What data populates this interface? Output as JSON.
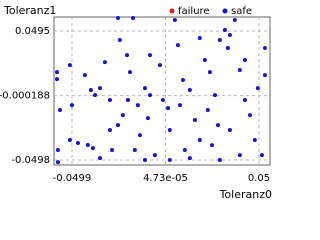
{
  "chart_data": {
    "type": "scatter",
    "y_label": "Toleranz1",
    "x_label": "Toleranz0",
    "xlim": [
      -0.0595,
      0.0559
    ],
    "ylim": [
      -0.0536,
      0.0603
    ],
    "xticks": [
      -0.0499,
      {
        "value": 4.73e-05,
        "label": "4.73e-05"
      },
      0.05
    ],
    "yticks": [
      -0.0498,
      -0.000188,
      0.0495
    ],
    "grid": true,
    "legend": "top-right",
    "series": [
      {
        "name": "failure",
        "color": "#e02020",
        "x": [],
        "values": []
      },
      {
        "name": "safe",
        "color": "#1414d8",
        "x": [
          -0.0579,
          -0.0579,
          -0.0574,
          -0.0574,
          -0.051,
          -0.0499,
          -0.051,
          -0.0467,
          -0.0414,
          -0.0387,
          -0.0376,
          -0.0398,
          -0.0349,
          -0.0323,
          -0.0296,
          -0.0285,
          -0.0253,
          -0.0173,
          -0.0243,
          -0.0205,
          -0.0189,
          -0.02,
          -0.0227,
          -0.0253,
          -0.0147,
          -0.0109,
          -0.0082,
          -0.0093,
          -0.0136,
          -0.0109,
          -0.0056,
          -0.0029,
          -0.0013,
          0.0014,
          0.0024,
          0.0051,
          0.0067,
          0.0094,
          0.0078,
          0.0104,
          0.0131,
          0.0158,
          0.0184,
          0.0211,
          0.0238,
          0.0265,
          0.0281,
          0.0249,
          0.0291,
          0.0318,
          0.0345,
          0.0371,
          0.0334,
          0.0398,
          0.0425,
          0.0452,
          0.0478,
          0.0516,
          0.0532,
          0.0532,
          0.0494,
          0.0398,
          0.0184,
          0.0345,
          -0.0349,
          -0.043,
          -0.0296,
          -0.0082,
          0.0024,
          0.0227,
          -0.0563,
          -0.0163,
          0.0131,
          0.0425,
          0.0291
        ],
        "values": [
          0.0179,
          0.0125,
          -0.0421,
          -0.0514,
          0.0233,
          -0.0075,
          -0.0344,
          -0.0367,
          -0.0382,
          -0.0406,
          0.0002,
          0.0041,
          0.0056,
          0.0256,
          -0.0267,
          -0.0421,
          0.0595,
          0.0595,
          0.0426,
          0.031,
          0.0179,
          -0.0036,
          -0.0152,
          -0.0229,
          -0.0075,
          0.0056,
          0.0002,
          -0.0175,
          -0.0306,
          -0.0498,
          -0.046,
          0.0233,
          -0.0036,
          -0.0098,
          -0.0267,
          0.058,
          0.0387,
          0.0118,
          -0.0075,
          -0.0421,
          -0.0483,
          -0.019,
          0.0441,
          0.0272,
          0.0179,
          0.0002,
          -0.0229,
          -0.0383,
          -0.0498,
          0.0503,
          0.0464,
          0.058,
          0.0364,
          0.0195,
          -0.0036,
          -0.0152,
          -0.0344,
          -0.046,
          0.0364,
          0.0156,
          0.0056,
          -0.046,
          -0.0344,
          -0.0267,
          -0.0483,
          0.0156,
          -0.0036,
          0.031,
          -0.0498,
          -0.0113,
          -0.0113,
          -0.0421,
          0.0041,
          0.0272,
          0.0426
        ]
      }
    ]
  }
}
